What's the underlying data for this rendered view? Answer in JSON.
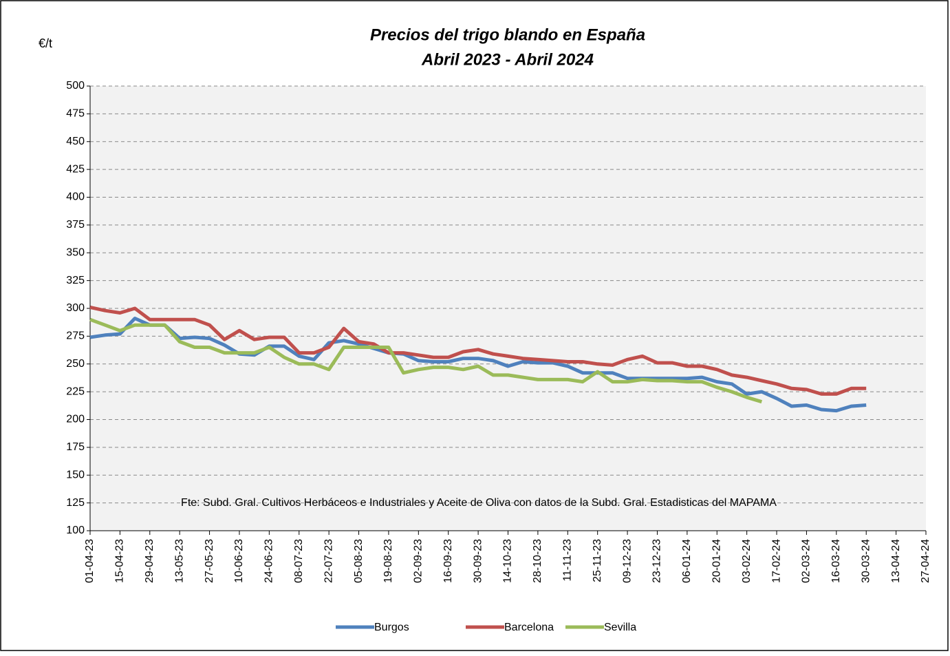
{
  "chart_data": {
    "type": "line",
    "title": [
      "Precios del trigo blando en España",
      "Abril 2023 - Abril 2024"
    ],
    "y_unit": "€/t",
    "annotation": "Fte: Subd. Gral. Cultivos Herbáceos e Industriales y Aceite de Oliva  con datos de la Subd. Gral. Estadisticas del MAPAMA",
    "categories": [
      "01-04-23",
      null,
      "15-04-23",
      null,
      "29-04-23",
      null,
      "13-05-23",
      null,
      "27-05-23",
      null,
      "10-06-23",
      null,
      "24-06-23",
      null,
      "08-07-23",
      null,
      "22-07-23",
      null,
      "05-08-23",
      null,
      "19-08-23",
      null,
      "02-09-23",
      null,
      "16-09-23",
      null,
      "30-09-23",
      null,
      "14-10-23",
      null,
      "28-10-23",
      null,
      "11-11-23",
      null,
      "25-11-23",
      null,
      "09-12-23",
      null,
      "23-12-23",
      null,
      "06-01-24",
      null,
      "20-01-24",
      null,
      "03-02-24",
      null,
      "17-02-24",
      null,
      "02-03-24",
      null,
      "16-03-24",
      null,
      "30-03-24",
      null,
      "13-04-24",
      null,
      "27-04-24"
    ],
    "series": [
      {
        "name": "Burgos",
        "color": "#4f81bd",
        "values": [
          274,
          276,
          277,
          291,
          285,
          285,
          273,
          274,
          273,
          267,
          259,
          258,
          266,
          266,
          257,
          254,
          269,
          271,
          268,
          264,
          260,
          259,
          253,
          252,
          252,
          255,
          255,
          253,
          248,
          252,
          251,
          251,
          248,
          242,
          242,
          242,
          237,
          237,
          237,
          237,
          237,
          238,
          234,
          232,
          223,
          225,
          219,
          212,
          213,
          209,
          208,
          212,
          213,
          null,
          null,
          null,
          null
        ]
      },
      {
        "name": "Barcelona",
        "color": "#c0504d",
        "values": [
          301,
          298,
          296,
          300,
          290,
          290,
          290,
          290,
          285,
          272,
          280,
          272,
          274,
          274,
          260,
          260,
          265,
          282,
          270,
          268,
          260,
          260,
          258,
          256,
          256,
          261,
          263,
          259,
          257,
          255,
          254,
          253,
          252,
          252,
          250,
          249,
          254,
          257,
          251,
          251,
          248,
          248,
          245,
          240,
          238,
          235,
          232,
          228,
          227,
          223,
          223,
          228,
          228,
          null,
          null,
          null,
          null
        ]
      },
      {
        "name": "Sevilla",
        "color": "#9bbb59",
        "values": [
          290,
          285,
          280,
          285,
          285,
          285,
          270,
          265,
          265,
          260,
          260,
          260,
          265,
          256,
          250,
          250,
          245,
          265,
          265,
          265,
          265,
          242,
          245,
          247,
          247,
          245,
          248,
          240,
          240,
          238,
          236,
          236,
          236,
          234,
          243,
          234,
          234,
          236,
          235,
          235,
          234,
          234,
          229,
          225,
          220,
          216,
          null,
          null,
          null,
          null,
          null,
          null,
          null,
          null,
          null,
          null,
          null
        ]
      }
    ],
    "ylim": [
      100,
      500
    ],
    "yticks": [
      100,
      125,
      150,
      175,
      200,
      225,
      250,
      275,
      300,
      325,
      350,
      375,
      400,
      425,
      450,
      475,
      500
    ],
    "grid": true
  }
}
